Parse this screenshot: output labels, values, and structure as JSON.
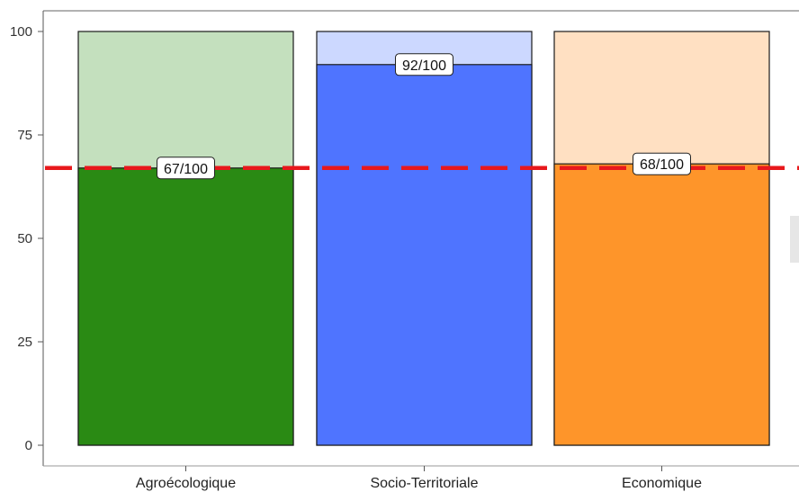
{
  "chart_data": {
    "type": "bar",
    "categories": [
      "Agroécologique",
      "Socio-Territoriale",
      "Economique"
    ],
    "values": [
      67,
      92,
      68
    ],
    "max_values": [
      100,
      100,
      100
    ],
    "data_labels": [
      "67/100",
      "92/100",
      "68/100"
    ],
    "ylim": [
      0,
      100
    ],
    "yticks": [
      "0",
      "25",
      "50",
      "75",
      "100"
    ],
    "reference_line": {
      "y": 67,
      "color": "#e8181c",
      "style": "dashed"
    },
    "series_colors": [
      "#2a8a14",
      "#4f74ff",
      "#fe952a"
    ],
    "background_colors": [
      "#c4e0be",
      "#ccd8ff",
      "#ffe0c2"
    ],
    "title": "",
    "xlabel": "",
    "ylabel": ""
  }
}
